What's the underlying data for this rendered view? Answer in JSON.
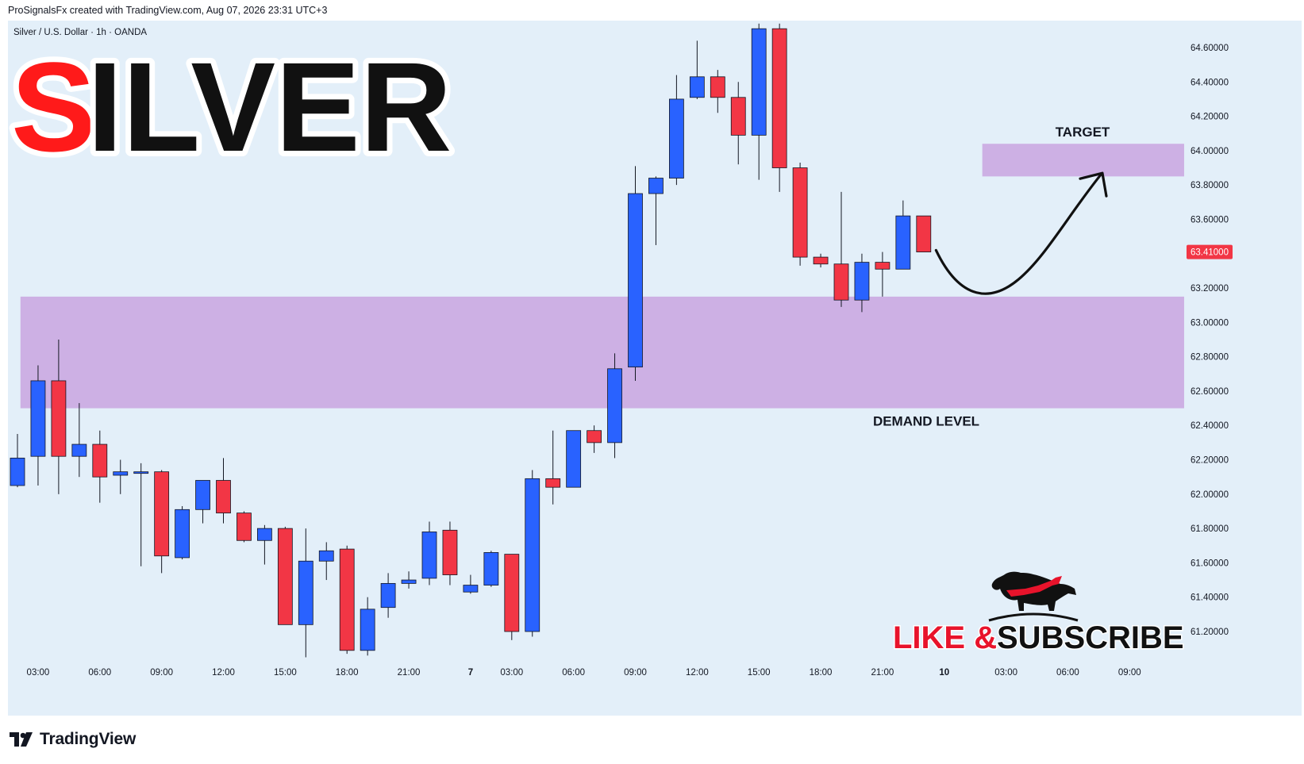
{
  "header": {
    "credit": "ProSignalsFx created with TradingView.com, Aug 07, 2026 23:31 UTC+3"
  },
  "footer": {
    "brand": "TradingView",
    "logo_icon": "tradingview-logo-icon"
  },
  "overlay": {
    "title_first_letter": "S",
    "title_rest": "ILVER",
    "title_colors": {
      "first": "#ff1a1a",
      "rest": "#111111",
      "outline": "#ffffff"
    },
    "cta_like": "LIKE &",
    "cta_subscribe": "SUBSCRIBE",
    "cta_colors": {
      "like": "#e8132b",
      "subscribe": "#111111"
    },
    "bull_icon": "bull-icon"
  },
  "chart_data": {
    "type": "candlestick",
    "title": "Silver / U.S. Dollar · 1h · OANDA",
    "symbol": "Silver / U.S. Dollar",
    "timeframe": "1h",
    "source": "OANDA",
    "colors": {
      "up": "#2962ff",
      "down": "#f23645",
      "zone": "#c9a7e0",
      "background": "#e3eff9",
      "price_tag": "#f23645"
    },
    "ylim": [
      61.05,
      64.75
    ],
    "y_ticks": [
      "64.60000",
      "64.40000",
      "64.20000",
      "64.00000",
      "63.80000",
      "63.60000",
      "63.40000",
      "63.20000",
      "63.00000",
      "62.80000",
      "62.60000",
      "62.40000",
      "62.20000",
      "62.00000",
      "61.80000",
      "61.60000",
      "61.40000",
      "61.20000"
    ],
    "x_ticks": [
      {
        "label": "03:00",
        "i": 1
      },
      {
        "label": "06:00",
        "i": 4
      },
      {
        "label": "09:00",
        "i": 7
      },
      {
        "label": "12:00",
        "i": 10
      },
      {
        "label": "15:00",
        "i": 13
      },
      {
        "label": "18:00",
        "i": 16
      },
      {
        "label": "21:00",
        "i": 19
      },
      {
        "label": "7",
        "i": 22
      },
      {
        "label": "03:00",
        "i": 24
      },
      {
        "label": "06:00",
        "i": 27
      },
      {
        "label": "09:00",
        "i": 30
      },
      {
        "label": "12:00",
        "i": 33
      },
      {
        "label": "15:00",
        "i": 36
      },
      {
        "label": "18:00",
        "i": 39
      },
      {
        "label": "21:00",
        "i": 42
      },
      {
        "label": "10",
        "i": 45
      },
      {
        "label": "03:00",
        "i": 48
      },
      {
        "label": "06:00",
        "i": 51
      },
      {
        "label": "09:00",
        "i": 54
      }
    ],
    "last_price": "63.41000",
    "candles": [
      {
        "o": 62.05,
        "h": 62.35,
        "l": 62.04,
        "c": 62.21
      },
      {
        "o": 62.22,
        "h": 62.75,
        "l": 62.05,
        "c": 62.66
      },
      {
        "o": 62.66,
        "h": 62.9,
        "l": 62.0,
        "c": 62.22
      },
      {
        "o": 62.22,
        "h": 62.53,
        "l": 62.1,
        "c": 62.29
      },
      {
        "o": 62.29,
        "h": 62.37,
        "l": 61.95,
        "c": 62.1
      },
      {
        "o": 62.11,
        "h": 62.2,
        "l": 62.0,
        "c": 62.13
      },
      {
        "o": 62.13,
        "h": 62.18,
        "l": 61.58,
        "c": 62.13
      },
      {
        "o": 62.13,
        "h": 62.14,
        "l": 61.54,
        "c": 61.64
      },
      {
        "o": 61.63,
        "h": 61.93,
        "l": 61.62,
        "c": 61.91
      },
      {
        "o": 61.91,
        "h": 62.08,
        "l": 61.83,
        "c": 62.08
      },
      {
        "o": 62.08,
        "h": 62.21,
        "l": 61.83,
        "c": 61.89
      },
      {
        "o": 61.89,
        "h": 61.9,
        "l": 61.72,
        "c": 61.73
      },
      {
        "o": 61.73,
        "h": 61.82,
        "l": 61.59,
        "c": 61.8
      },
      {
        "o": 61.8,
        "h": 61.81,
        "l": 61.24,
        "c": 61.24
      },
      {
        "o": 61.24,
        "h": 61.8,
        "l": 61.05,
        "c": 61.61
      },
      {
        "o": 61.61,
        "h": 61.72,
        "l": 61.5,
        "c": 61.67
      },
      {
        "o": 61.68,
        "h": 61.7,
        "l": 61.07,
        "c": 61.09
      },
      {
        "o": 61.09,
        "h": 61.4,
        "l": 61.06,
        "c": 61.33
      },
      {
        "o": 61.34,
        "h": 61.54,
        "l": 61.28,
        "c": 61.48
      },
      {
        "o": 61.48,
        "h": 61.55,
        "l": 61.45,
        "c": 61.5
      },
      {
        "o": 61.51,
        "h": 61.84,
        "l": 61.47,
        "c": 61.78
      },
      {
        "o": 61.79,
        "h": 61.84,
        "l": 61.47,
        "c": 61.53
      },
      {
        "o": 61.43,
        "h": 61.53,
        "l": 61.42,
        "c": 61.47
      },
      {
        "o": 61.47,
        "h": 61.67,
        "l": 61.46,
        "c": 61.66
      },
      {
        "o": 61.65,
        "h": 61.65,
        "l": 61.15,
        "c": 61.2
      },
      {
        "o": 61.2,
        "h": 62.14,
        "l": 61.17,
        "c": 62.09
      },
      {
        "o": 62.09,
        "h": 62.37,
        "l": 61.94,
        "c": 62.04
      },
      {
        "o": 62.04,
        "h": 62.37,
        "l": 62.04,
        "c": 62.37
      },
      {
        "o": 62.37,
        "h": 62.4,
        "l": 62.24,
        "c": 62.3
      },
      {
        "o": 62.3,
        "h": 62.82,
        "l": 62.21,
        "c": 62.73
      },
      {
        "o": 62.74,
        "h": 63.91,
        "l": 62.66,
        "c": 63.75
      },
      {
        "o": 63.75,
        "h": 63.85,
        "l": 63.45,
        "c": 63.84
      },
      {
        "o": 63.84,
        "h": 64.44,
        "l": 63.8,
        "c": 64.3
      },
      {
        "o": 64.31,
        "h": 64.64,
        "l": 64.3,
        "c": 64.43
      },
      {
        "o": 64.43,
        "h": 64.47,
        "l": 64.22,
        "c": 64.31
      },
      {
        "o": 64.31,
        "h": 64.4,
        "l": 63.92,
        "c": 64.09
      },
      {
        "o": 64.09,
        "h": 64.74,
        "l": 63.83,
        "c": 64.71
      },
      {
        "o": 64.71,
        "h": 64.74,
        "l": 63.76,
        "c": 63.9
      },
      {
        "o": 63.9,
        "h": 63.93,
        "l": 63.33,
        "c": 63.38
      },
      {
        "o": 63.38,
        "h": 63.4,
        "l": 63.32,
        "c": 63.34
      },
      {
        "o": 63.34,
        "h": 63.76,
        "l": 63.09,
        "c": 63.13
      },
      {
        "o": 63.13,
        "h": 63.4,
        "l": 63.06,
        "c": 63.35
      },
      {
        "o": 63.35,
        "h": 63.41,
        "l": 63.15,
        "c": 63.31
      },
      {
        "o": 63.31,
        "h": 63.71,
        "l": 63.31,
        "c": 63.62
      },
      {
        "o": 63.62,
        "h": 63.62,
        "l": 63.41,
        "c": 63.41
      }
    ],
    "zones": [
      {
        "label": "DEMAND LEVEL",
        "y_low": 62.5,
        "y_high": 63.15,
        "i_start": 0.3,
        "i_end": 56.8
      },
      {
        "label": "TARGET",
        "y_low": 63.85,
        "y_high": 64.04,
        "i_start": 47.0,
        "i_end": 56.8
      }
    ],
    "projection": {
      "path": [
        {
          "i": 44.6,
          "y": 63.42
        },
        {
          "i": 45.8,
          "y": 63.12
        },
        {
          "i": 47.3,
          "y": 63.12
        },
        {
          "i": 48.6,
          "y": 63.25
        },
        {
          "i": 51.0,
          "y": 63.62
        },
        {
          "i": 52.6,
          "y": 63.86
        }
      ]
    }
  }
}
